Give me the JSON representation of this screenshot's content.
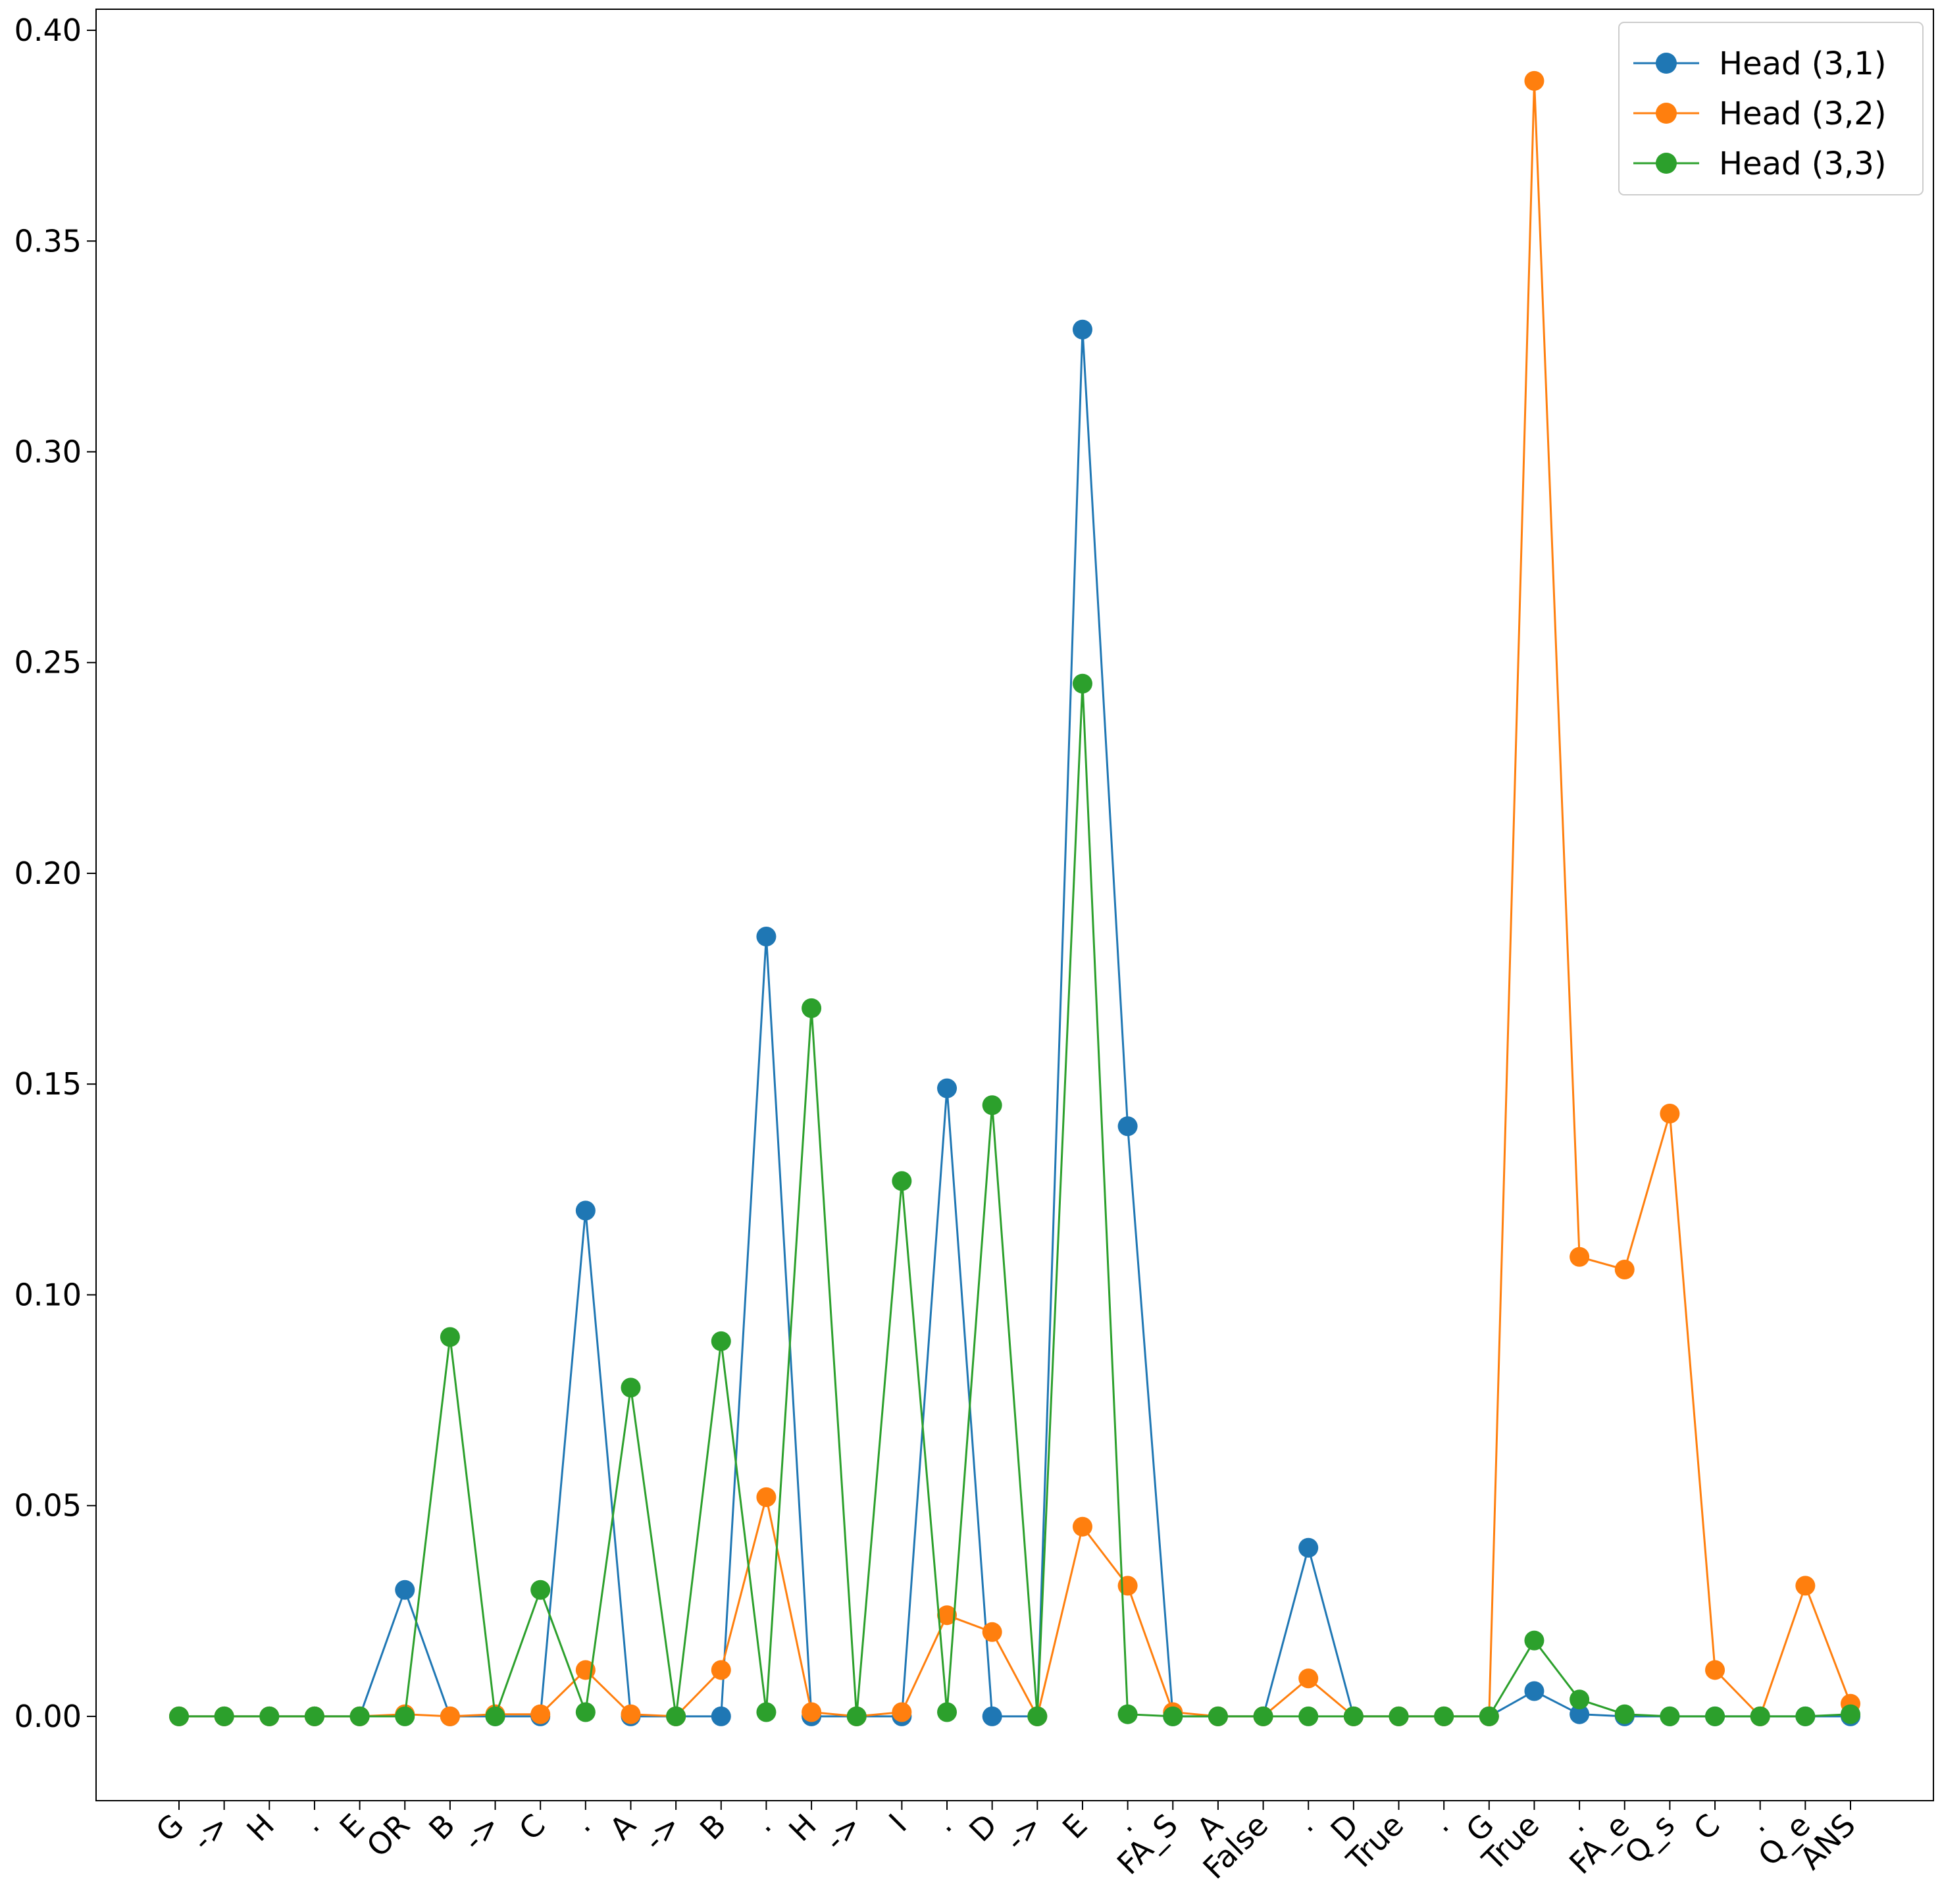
{
  "chart_data": {
    "type": "line",
    "title": "",
    "xlabel": "",
    "ylabel": "",
    "ylim": [
      -0.02,
      0.405
    ],
    "yticks": [
      0.0,
      0.05,
      0.1,
      0.15,
      0.2,
      0.25,
      0.3,
      0.35,
      0.4
    ],
    "ytick_labels": [
      "0.00",
      "0.05",
      "0.10",
      "0.15",
      "0.20",
      "0.25",
      "0.30",
      "0.35",
      "0.40"
    ],
    "grid": false,
    "legend_position": "top-right",
    "categories": [
      "G",
      "->",
      "H",
      ".",
      "E",
      "OR",
      "B",
      "->",
      "C",
      ".",
      "A",
      "->",
      "B",
      ".",
      "H",
      "->",
      "I",
      ".",
      "D",
      "->",
      "E",
      ".",
      "FA_S",
      "A",
      "False",
      ".",
      "D",
      "True",
      ".",
      "G",
      "True",
      ".",
      "FA_e",
      "Q_s",
      "C",
      ".",
      "Q_e",
      "ANS"
    ],
    "series": [
      {
        "name": "Head (3,1)",
        "color": "#1f77b4",
        "values": [
          0,
          0,
          0,
          0,
          0,
          0.03,
          0,
          0,
          0,
          0.12,
          0,
          0,
          0,
          0.185,
          0,
          0,
          0,
          0.149,
          0,
          0,
          0.329,
          0.14,
          0,
          0,
          0,
          0.04,
          0,
          0,
          0,
          0,
          0.006,
          0.0005,
          0,
          0,
          0,
          0,
          0,
          0
        ]
      },
      {
        "name": "Head (3,2)",
        "color": "#ff7f0e",
        "values": [
          0,
          0,
          0,
          0,
          0,
          0.0005,
          0,
          0.0005,
          0.0005,
          0.011,
          0.0005,
          0,
          0.011,
          0.052,
          0.001,
          0,
          0.001,
          0.024,
          0.02,
          0,
          0.045,
          0.031,
          0.001,
          0,
          0,
          0.009,
          0,
          0,
          0,
          0,
          0.388,
          0.109,
          0.106,
          0.143,
          0.011,
          0,
          0.031,
          0.003
        ]
      },
      {
        "name": "Head (3,3)",
        "color": "#2ca02c",
        "values": [
          0,
          0,
          0,
          0,
          0,
          0,
          0.09,
          0,
          0.03,
          0.001,
          0.078,
          0,
          0.089,
          0.001,
          0.168,
          0,
          0.127,
          0.001,
          0.145,
          0,
          0.245,
          0.0005,
          0,
          0,
          0,
          0,
          0,
          0,
          0,
          0,
          0.018,
          0.004,
          0.0005,
          0,
          0,
          0,
          0,
          0.0005
        ]
      }
    ]
  }
}
